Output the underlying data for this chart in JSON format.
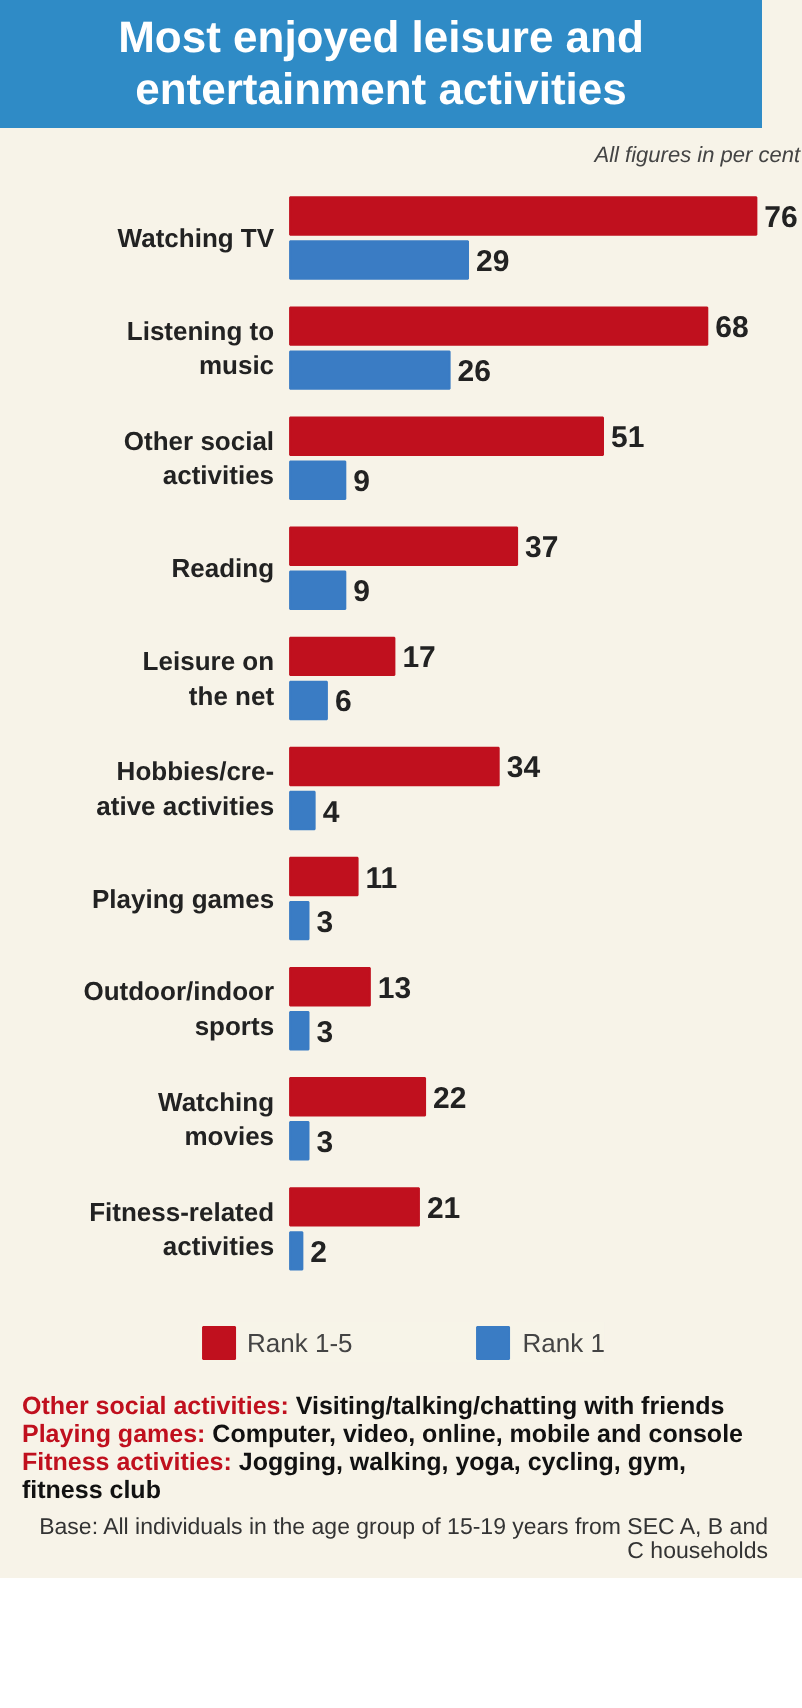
{
  "chart_data": {
    "type": "bar",
    "orientation": "horizontal",
    "title": "Most enjoyed leisure and entertainment activities",
    "subtitle": "All figures in per cent",
    "categories": [
      "Watching TV",
      "Listening to\nmusic",
      "Other social\nactivities",
      "Reading",
      "Leisure on\nthe net",
      "Hobbies/cre-\native activities",
      "Playing games",
      "Outdoor/indoor\nsports",
      "Watching\nmovies",
      "Fitness-related\nactivities"
    ],
    "series": [
      {
        "name": "Rank 1-5",
        "color": "#c0101e",
        "values": [
          76,
          68,
          51,
          37,
          17,
          34,
          11,
          13,
          22,
          21
        ]
      },
      {
        "name": "Rank 1",
        "color": "#3a7cc4",
        "values": [
          29,
          26,
          9,
          9,
          6,
          4,
          3,
          3,
          3,
          2
        ]
      }
    ],
    "data_labels": true,
    "legend": "bottom",
    "grid": false,
    "tick_labels": "y",
    "annotations": [
      "Other social activities: Visiting/talking/chatting with friends",
      "Playing games: Computer, video, online, mobile and console",
      "Fitness activities: Jogging, walking, yoga, cycling, gym, fitness club",
      "Base: All individuals in the age group of 15-19 years from SEC A, B and C households"
    ]
  }
}
